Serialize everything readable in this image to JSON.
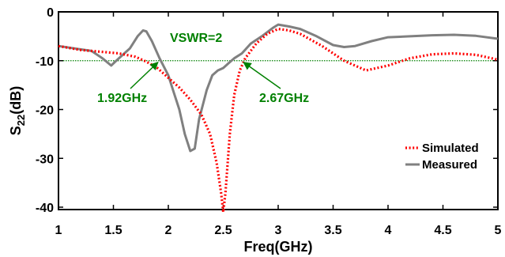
{
  "chart_data": {
    "type": "line",
    "xlabel": "Freq(GHz)",
    "ylabel": "S",
    "ylabel_sub": "22",
    "ylabel_suffix": "(dB)",
    "xlim": [
      1,
      5
    ],
    "ylim": [
      -42,
      0
    ],
    "xticks": [
      1,
      1.5,
      2,
      2.5,
      3,
      3.5,
      4,
      4.5,
      5
    ],
    "xtick_labels": [
      "1",
      "1.5",
      "2",
      "2.5",
      "3",
      "3.5",
      "4",
      "4.5",
      "5"
    ],
    "yticks": [
      0,
      -10,
      -20,
      -30,
      -40
    ],
    "ytick_labels": [
      "0",
      "-10",
      "-20",
      "-30",
      "-40"
    ],
    "grid": false,
    "legend_position": "bottom-right",
    "reference_line": {
      "y": -10,
      "label": "VSWR=2",
      "color": "#008000"
    },
    "annotations": [
      {
        "text": "1.92GHz",
        "x": 1.92,
        "y": -10,
        "color": "#008000"
      },
      {
        "text": "2.67GHz",
        "x": 2.67,
        "y": -10,
        "color": "#008000"
      }
    ],
    "series": [
      {
        "name": "Simulated",
        "color": "#ff0000",
        "style": "dotted",
        "x": [
          1.0,
          1.2,
          1.4,
          1.55,
          1.7,
          1.8,
          1.9,
          2.0,
          2.1,
          2.2,
          2.3,
          2.38,
          2.44,
          2.48,
          2.5,
          2.52,
          2.56,
          2.6,
          2.65,
          2.7,
          2.8,
          2.9,
          3.0,
          3.1,
          3.2,
          3.4,
          3.6,
          3.8,
          4.0,
          4.2,
          4.4,
          4.6,
          4.8,
          5.0
        ],
        "y": [
          -7.0,
          -7.8,
          -8.2,
          -8.5,
          -9.2,
          -10.2,
          -11.5,
          -13.5,
          -15.5,
          -18.0,
          -21.0,
          -25.0,
          -31.0,
          -37.0,
          -41.0,
          -37.0,
          -25.0,
          -17.0,
          -12.0,
          -9.5,
          -6.5,
          -4.5,
          -3.5,
          -3.8,
          -4.5,
          -7.0,
          -10.0,
          -12.0,
          -11.0,
          -9.5,
          -8.7,
          -8.5,
          -8.8,
          -9.8
        ]
      },
      {
        "name": "Measured",
        "color": "#808080",
        "style": "solid",
        "x": [
          1.0,
          1.15,
          1.3,
          1.4,
          1.48,
          1.55,
          1.65,
          1.72,
          1.77,
          1.8,
          1.85,
          1.92,
          2.0,
          2.05,
          2.1,
          2.15,
          2.2,
          2.24,
          2.28,
          2.35,
          2.4,
          2.45,
          2.5,
          2.55,
          2.6,
          2.67,
          2.75,
          2.85,
          2.95,
          3.0,
          3.1,
          3.2,
          3.35,
          3.5,
          3.6,
          3.7,
          3.85,
          4.0,
          4.2,
          4.4,
          4.6,
          4.8,
          5.0
        ],
        "y": [
          -7.0,
          -7.5,
          -8.0,
          -9.5,
          -11.0,
          -9.5,
          -7.5,
          -5.0,
          -3.8,
          -4.0,
          -6.0,
          -9.5,
          -13.0,
          -16.5,
          -20.0,
          -25.0,
          -28.5,
          -28.0,
          -22.0,
          -16.0,
          -13.0,
          -12.0,
          -11.5,
          -10.5,
          -9.5,
          -8.5,
          -6.5,
          -5.0,
          -3.3,
          -2.6,
          -3.0,
          -3.5,
          -5.0,
          -6.8,
          -7.2,
          -7.0,
          -6.0,
          -5.2,
          -5.0,
          -4.8,
          -4.7,
          -4.9,
          -5.5
        ]
      }
    ]
  }
}
